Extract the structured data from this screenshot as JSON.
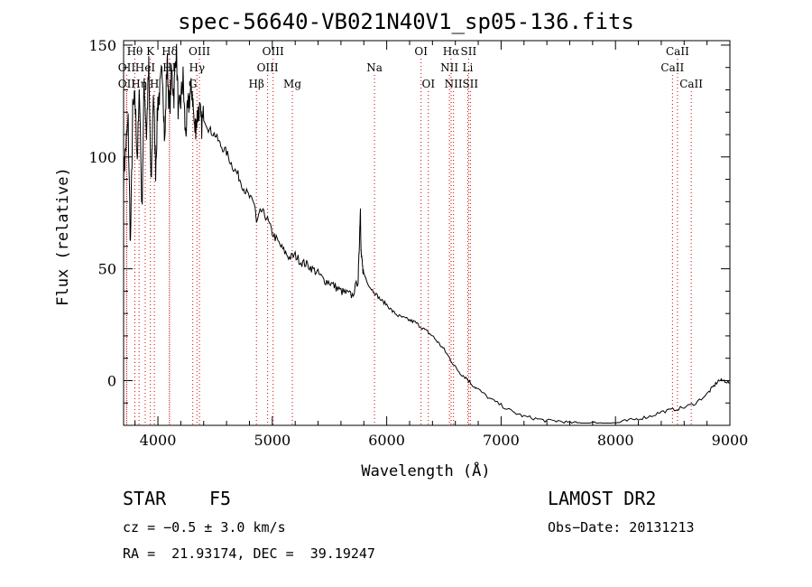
{
  "chart_data": {
    "type": "line",
    "title": "spec-56640-VB021N40V1_sp05-136.fits",
    "xlabel": "Wavelength (Å)",
    "ylabel": "Flux (relative)",
    "xlim": [
      3700,
      9000
    ],
    "ylim": [
      -20,
      152
    ],
    "xticks": [
      4000,
      5000,
      6000,
      7000,
      8000,
      9000
    ],
    "yticks": [
      0,
      50,
      100,
      150
    ],
    "line_color": "#000000",
    "marker_color": "#cc0000",
    "series": [
      {
        "x": [
          3700,
          3720,
          3740,
          3760,
          3780,
          3800,
          3820,
          3840,
          3860,
          3880,
          3900,
          3920,
          3940,
          3960,
          3980,
          4000,
          4020,
          4040,
          4060,
          4080,
          4100,
          4120,
          4140,
          4160,
          4180,
          4200,
          4220,
          4240,
          4260,
          4280,
          4300,
          4320,
          4340,
          4360,
          4380,
          4400,
          4450,
          4500,
          4550,
          4600,
          4650,
          4700,
          4750,
          4800,
          4850,
          4861,
          4900,
          4950,
          5000,
          5050,
          5100,
          5150,
          5200,
          5250,
          5300,
          5350,
          5400,
          5450,
          5500,
          5550,
          5600,
          5650,
          5700,
          5750,
          5760,
          5770,
          5775,
          5780,
          5790,
          5800,
          5850,
          5900,
          5950,
          6000,
          6050,
          6100,
          6150,
          6200,
          6250,
          6300,
          6350,
          6400,
          6450,
          6500,
          6550,
          6600,
          6650,
          6700,
          6750,
          6800,
          6900,
          7000,
          7100,
          7200,
          7300,
          7400,
          7500,
          7600,
          7700,
          7800,
          7900,
          8000,
          8100,
          8200,
          8300,
          8400,
          8500,
          8600,
          8700,
          8800,
          8850,
          8900,
          8950,
          9000
        ],
        "y": [
          92,
          105,
          115,
          60,
          120,
          125,
          100,
          130,
          75,
          135,
          110,
          140,
          85,
          130,
          95,
          125,
          130,
          140,
          105,
          145,
          120,
          138,
          128,
          150,
          118,
          125,
          135,
          110,
          120,
          128,
          130,
          112,
          117,
          122,
          114,
          118,
          112,
          110,
          105,
          102,
          96,
          92,
          86,
          82,
          78,
          70,
          76,
          73,
          66,
          62,
          58,
          55,
          56,
          53,
          52,
          50,
          48,
          45,
          44,
          42,
          40,
          39,
          38,
          45,
          60,
          77,
          58,
          55,
          50,
          48,
          42,
          39,
          36,
          34,
          31,
          29,
          28,
          27,
          26,
          24,
          22,
          20,
          17,
          14,
          10,
          6,
          3,
          1,
          -2,
          -4,
          -8,
          -11,
          -14,
          -16,
          -17,
          -18,
          -18,
          -19,
          -19,
          -19,
          -19,
          -19,
          -18,
          -17,
          -16,
          -14,
          -13,
          -12,
          -10,
          -6,
          -3,
          0,
          0,
          -1
        ]
      }
    ],
    "line_markers": [
      {
        "label": "Hθ",
        "x": 3798,
        "row": 0
      },
      {
        "label": "K",
        "x": 3934,
        "row": 0
      },
      {
        "label": "Hδ",
        "x": 4102,
        "row": 0
      },
      {
        "label": "OII",
        "x": 3727,
        "row": 1
      },
      {
        "label": "HeI",
        "x": 3889,
        "row": 1
      },
      {
        "label": "HI",
        "x": 4100,
        "row": 1
      },
      {
        "label": "OII",
        "x": 3727,
        "row": 2
      },
      {
        "label": "Hη",
        "x": 3835,
        "row": 2
      },
      {
        "label": "H",
        "x": 3969,
        "row": 2
      },
      {
        "label": "OIII",
        "x": 4363,
        "row": 0
      },
      {
        "label": "Hγ",
        "x": 4341,
        "row": 1
      },
      {
        "label": "G",
        "x": 4305,
        "row": 2
      },
      {
        "label": "OIII",
        "x": 5007,
        "row": 0
      },
      {
        "label": "OIII",
        "x": 4959,
        "row": 1
      },
      {
        "label": "Hβ",
        "x": 4861,
        "row": 2
      },
      {
        "label": "Mg",
        "x": 5175,
        "row": 2
      },
      {
        "label": "Na",
        "x": 5893,
        "row": 1
      },
      {
        "label": "OI",
        "x": 6300,
        "row": 0
      },
      {
        "label": "OI",
        "x": 6364,
        "row": 2
      },
      {
        "label": "Hα",
        "x": 6563,
        "row": 0
      },
      {
        "label": "SII",
        "x": 6716,
        "row": 0
      },
      {
        "label": "NII",
        "x": 6548,
        "row": 1
      },
      {
        "label": "Li",
        "x": 6708,
        "row": 1
      },
      {
        "label": "NII",
        "x": 6584,
        "row": 2
      },
      {
        "label": "SII",
        "x": 6731,
        "row": 2
      },
      {
        "label": "CaII",
        "x": 8542,
        "row": 0
      },
      {
        "label": "CaII",
        "x": 8498,
        "row": 1
      },
      {
        "label": "CaII",
        "x": 8662,
        "row": 2
      }
    ]
  },
  "info": {
    "class": "STAR",
    "subclass": "F5",
    "survey": "LAMOST DR2",
    "cz": "cz = −0.5 ± 3.0 km/s",
    "obs_date": "Obs−Date: 20131213",
    "coords": "RA =  21.93174, DEC =  39.19247"
  }
}
